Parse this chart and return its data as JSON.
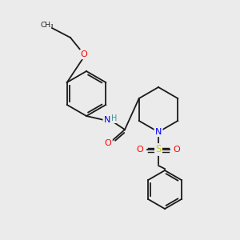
{
  "bg_color": "#ebebeb",
  "bond_color": "#1a1a1a",
  "atom_colors": {
    "O": "#ff0000",
    "N": "#0000ff",
    "S": "#cccc00",
    "H": "#4a9090",
    "C": "#1a1a1a"
  },
  "font_size": 7.5,
  "bond_width": 1.3
}
